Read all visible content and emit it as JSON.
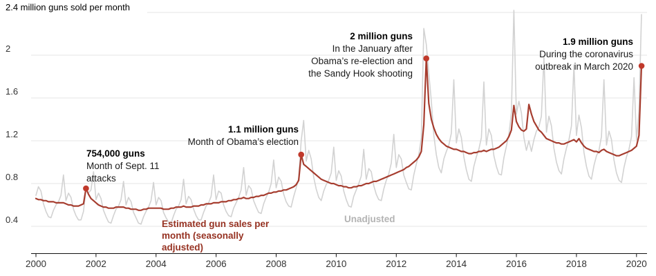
{
  "chart_data": {
    "type": "line",
    "title": "2.4 million guns sold per month",
    "x_start": 2000,
    "x_axis": {
      "ticks": [
        "2000",
        "2002",
        "2004",
        "2006",
        "2008",
        "2010",
        "2012",
        "2014",
        "2016",
        "2018",
        "2020"
      ]
    },
    "y_axis": {
      "top_label": "2.4 million guns sold per month",
      "unit": "million guns per month",
      "ticks": [
        {
          "value": 0.4,
          "label": "0.4"
        },
        {
          "value": 0.8,
          "label": "0.8"
        },
        {
          "value": 1.2,
          "label": "1.2"
        },
        {
          "value": 1.6,
          "label": "1.6"
        },
        {
          "value": 2.0,
          "label": "2"
        },
        {
          "value": 2.4,
          "label": ""
        }
      ]
    },
    "marker_color": "#c0392b",
    "colors": {
      "adjusted_line": "#a63d2f",
      "unadjusted_line": "#d2d2d2",
      "adjusted_label": "#963222",
      "unadjusted_label": "#b3b3b3",
      "gridline": "#e4e4e4",
      "axis": "#111111"
    },
    "series": [
      {
        "id": "unadjusted",
        "name": "Unadjusted",
        "color": "#d2d2d2",
        "values": [
          0.69,
          0.77,
          0.73,
          0.61,
          0.54,
          0.49,
          0.48,
          0.55,
          0.6,
          0.63,
          0.69,
          0.88,
          0.64,
          0.71,
          0.67,
          0.56,
          0.5,
          0.46,
          0.46,
          0.54,
          0.75,
          0.71,
          0.74,
          0.91,
          0.65,
          0.71,
          0.66,
          0.55,
          0.49,
          0.44,
          0.43,
          0.5,
          0.56,
          0.59,
          0.65,
          0.82,
          0.6,
          0.67,
          0.63,
          0.53,
          0.48,
          0.43,
          0.42,
          0.49,
          0.54,
          0.58,
          0.64,
          0.81,
          0.6,
          0.67,
          0.64,
          0.53,
          0.48,
          0.44,
          0.43,
          0.5,
          0.56,
          0.59,
          0.65,
          0.84,
          0.61,
          0.68,
          0.65,
          0.56,
          0.5,
          0.46,
          0.46,
          0.53,
          0.59,
          0.62,
          0.68,
          0.88,
          0.65,
          0.73,
          0.71,
          0.6,
          0.54,
          0.5,
          0.49,
          0.57,
          0.62,
          0.67,
          0.74,
          0.95,
          0.69,
          0.78,
          0.75,
          0.64,
          0.58,
          0.53,
          0.52,
          0.61,
          0.67,
          0.72,
          0.8,
          1.02,
          0.76,
          0.86,
          0.82,
          0.7,
          0.63,
          0.59,
          0.58,
          0.68,
          0.76,
          0.85,
          1.2,
          1.39,
          1.01,
          1.11,
          1.03,
          0.86,
          0.75,
          0.67,
          0.64,
          0.73,
          0.79,
          0.83,
          0.9,
          1.14,
          0.83,
          0.92,
          0.87,
          0.73,
          0.65,
          0.59,
          0.58,
          0.68,
          0.74,
          0.8,
          0.87,
          1.12,
          0.84,
          0.94,
          0.91,
          0.78,
          0.7,
          0.65,
          0.64,
          0.75,
          0.83,
          0.89,
          0.99,
          1.26,
          0.95,
          1.07,
          1.03,
          0.88,
          0.81,
          0.75,
          0.74,
          0.88,
          0.98,
          1.07,
          1.23,
          2.25,
          2.1,
          1.83,
          1.57,
          1.25,
          1.07,
          0.95,
          0.9,
          1.03,
          1.1,
          1.16,
          1.27,
          1.77,
          1.18,
          1.31,
          1.23,
          1.05,
          0.93,
          0.84,
          0.82,
          0.96,
          1.05,
          1.12,
          1.23,
          1.75,
          1.16,
          1.31,
          1.25,
          1.06,
          0.96,
          0.89,
          0.88,
          1.04,
          1.15,
          1.26,
          1.46,
          2.42,
          1.45,
          1.57,
          1.46,
          1.23,
          1.11,
          1.2,
          1.1,
          1.21,
          1.29,
          1.33,
          1.43,
          1.98,
          1.28,
          1.43,
          1.34,
          1.13,
          1.0,
          0.92,
          0.89,
          1.03,
          1.13,
          1.21,
          1.34,
          1.91,
          1.25,
          1.44,
          1.32,
          1.09,
          0.96,
          0.87,
          0.84,
          0.97,
          1.06,
          1.11,
          1.24,
          1.77,
          1.16,
          1.29,
          1.21,
          1.02,
          0.9,
          0.83,
          0.81,
          0.95,
          1.05,
          1.12,
          1.24,
          1.79,
          1.21,
          1.48,
          2.38
        ]
      },
      {
        "id": "adjusted",
        "name": "Estimated gun sales per month (seasonally adjusted)",
        "color": "#a63d2f",
        "values": [
          0.66,
          0.65,
          0.65,
          0.64,
          0.64,
          0.63,
          0.63,
          0.63,
          0.62,
          0.62,
          0.62,
          0.62,
          0.61,
          0.6,
          0.6,
          0.59,
          0.59,
          0.59,
          0.6,
          0.61,
          0.754,
          0.7,
          0.66,
          0.64,
          0.62,
          0.6,
          0.59,
          0.58,
          0.58,
          0.57,
          0.57,
          0.57,
          0.58,
          0.58,
          0.58,
          0.58,
          0.57,
          0.57,
          0.56,
          0.56,
          0.56,
          0.55,
          0.55,
          0.56,
          0.56,
          0.57,
          0.57,
          0.57,
          0.57,
          0.57,
          0.57,
          0.56,
          0.56,
          0.56,
          0.57,
          0.57,
          0.58,
          0.58,
          0.58,
          0.59,
          0.58,
          0.58,
          0.58,
          0.59,
          0.59,
          0.59,
          0.6,
          0.6,
          0.61,
          0.61,
          0.61,
          0.62,
          0.62,
          0.62,
          0.63,
          0.63,
          0.63,
          0.64,
          0.64,
          0.65,
          0.65,
          0.66,
          0.66,
          0.67,
          0.66,
          0.66,
          0.67,
          0.67,
          0.68,
          0.68,
          0.69,
          0.69,
          0.7,
          0.71,
          0.71,
          0.72,
          0.72,
          0.73,
          0.73,
          0.74,
          0.74,
          0.75,
          0.76,
          0.77,
          0.79,
          0.83,
          1.07,
          0.98,
          0.96,
          0.94,
          0.92,
          0.9,
          0.88,
          0.86,
          0.84,
          0.83,
          0.82,
          0.81,
          0.8,
          0.8,
          0.79,
          0.78,
          0.78,
          0.77,
          0.77,
          0.76,
          0.76,
          0.77,
          0.77,
          0.78,
          0.78,
          0.79,
          0.8,
          0.8,
          0.81,
          0.82,
          0.82,
          0.83,
          0.84,
          0.85,
          0.86,
          0.87,
          0.88,
          0.89,
          0.9,
          0.91,
          0.92,
          0.93,
          0.95,
          0.96,
          0.98,
          1.0,
          1.02,
          1.05,
          1.1,
          1.35,
          1.97,
          1.55,
          1.4,
          1.32,
          1.26,
          1.22,
          1.19,
          1.17,
          1.15,
          1.14,
          1.13,
          1.12,
          1.12,
          1.11,
          1.1,
          1.1,
          1.09,
          1.08,
          1.08,
          1.09,
          1.09,
          1.1,
          1.1,
          1.11,
          1.1,
          1.11,
          1.12,
          1.12,
          1.13,
          1.14,
          1.16,
          1.18,
          1.2,
          1.24,
          1.3,
          1.53,
          1.38,
          1.33,
          1.3,
          1.29,
          1.31,
          1.54,
          1.45,
          1.38,
          1.34,
          1.3,
          1.28,
          1.25,
          1.22,
          1.21,
          1.2,
          1.19,
          1.18,
          1.18,
          1.17,
          1.17,
          1.18,
          1.19,
          1.2,
          1.21,
          1.19,
          1.22,
          1.18,
          1.15,
          1.13,
          1.12,
          1.11,
          1.1,
          1.1,
          1.09,
          1.11,
          1.12,
          1.1,
          1.09,
          1.08,
          1.07,
          1.06,
          1.06,
          1.07,
          1.08,
          1.09,
          1.1,
          1.11,
          1.13,
          1.15,
          1.25,
          1.9
        ]
      }
    ],
    "markers": [
      {
        "x": 2001.667,
        "y": 0.754,
        "label": "754,000 guns"
      },
      {
        "x": 2008.833,
        "y": 1.07,
        "label": "1.1 million guns"
      },
      {
        "x": 2013.0,
        "y": 1.97,
        "label": "2 million guns"
      },
      {
        "x": 2020.167,
        "y": 1.9,
        "label": "1.9 million guns"
      }
    ],
    "annotations": {
      "sept11": {
        "title": "754,000 guns",
        "lines": [
          "Month of Sept. 11",
          "attacks"
        ]
      },
      "obama_election": {
        "title": "1.1 million guns",
        "lines": [
          "Month of Obama’s election"
        ]
      },
      "sandy_hook": {
        "title": "2 million guns",
        "lines": [
          "In the January after",
          "Obama’s re-election and",
          "the Sandy Hook shooting"
        ]
      },
      "coronavirus": {
        "title": "1.9 million guns",
        "lines": [
          "During the coronavirus",
          "outbreak in March 2020"
        ]
      },
      "adjusted_label": {
        "lines": [
          "Estimated gun sales per",
          "month (seasonally",
          "adjusted)"
        ]
      },
      "unadjusted_label": {
        "label": "Unadjusted"
      }
    }
  }
}
